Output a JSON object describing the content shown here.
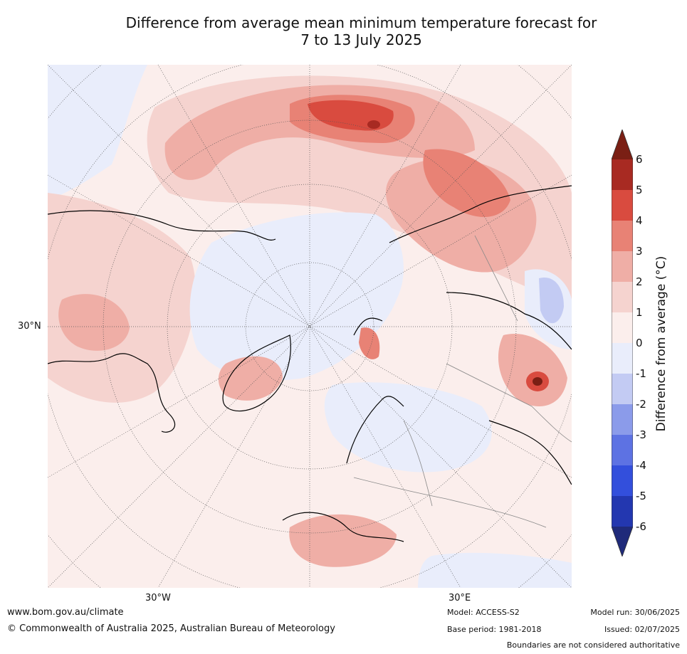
{
  "title": {
    "line1": "Difference from average mean minimum temperature forecast for",
    "line2": "7 to 13 July 2025"
  },
  "map": {
    "projection": "north-polar-stereographic",
    "lat_label": "30°N",
    "lon_labels": [
      "30°W",
      "30°E"
    ]
  },
  "colorbar": {
    "label": "Difference from average (°C)",
    "ticks": [
      "6",
      "5",
      "4",
      "3",
      "2",
      "1",
      "0",
      "-1",
      "-2",
      "-3",
      "-4",
      "-5",
      "-6"
    ],
    "colors": {
      "above6": "#7a1f14",
      "5to6": "#a82a22",
      "4to5": "#d94b3f",
      "3to4": "#e88275",
      "2to3": "#efaea6",
      "1to2": "#f5d3cf",
      "0to1": "#fbeeec",
      "m1to0": "#e9edfb",
      "m2tom1": "#c3cbf3",
      "m3tom2": "#8b9bea",
      "m4tom3": "#5d72e3",
      "m5tom4": "#334fdc",
      "m6tom5": "#2337b0",
      "below6": "#1f2a7a"
    }
  },
  "footer": {
    "url": "www.bom.gov.au/climate",
    "copyright": "© Commonwealth of Australia 2025, Australian Bureau of Meteorology",
    "model": "Model: ACCESS-S2",
    "base_period": "Base period: 1981-2018",
    "model_run": "Model run: 30/06/2025",
    "issued": "Issued: 02/07/2025",
    "disclaimer": "Boundaries are not considered authoritative"
  }
}
